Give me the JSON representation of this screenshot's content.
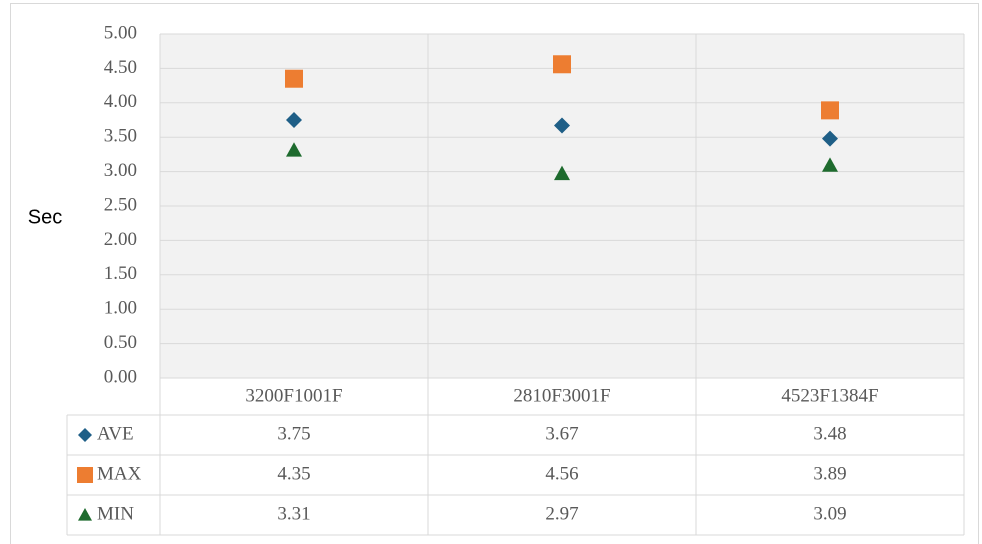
{
  "chart_data": {
    "type": "line",
    "lines": false,
    "y_label": "Sec",
    "categories": [
      "3200F1001F",
      "2810F3001F",
      "4523F1384F"
    ],
    "series": [
      {
        "name": "AVE",
        "color": "#1f5f87",
        "marker": "diamond",
        "values": [
          3.75,
          3.67,
          3.48
        ]
      },
      {
        "name": "MAX",
        "color": "#ed7d31",
        "marker": "square",
        "values": [
          4.35,
          4.56,
          3.89
        ]
      },
      {
        "name": "MIN",
        "color": "#1e6b2e",
        "marker": "triangle",
        "values": [
          3.31,
          2.97,
          3.09
        ]
      }
    ],
    "ylim": [
      0,
      5
    ],
    "yticks": [
      {
        "value": 0,
        "label": "0.00"
      },
      {
        "value": 0.5,
        "label": "0.50"
      },
      {
        "value": 1,
        "label": "1.00"
      },
      {
        "value": 1.5,
        "label": "1.50"
      },
      {
        "value": 2,
        "label": "2.00"
      },
      {
        "value": 2.5,
        "label": "2.50"
      },
      {
        "value": 3,
        "label": "3.00"
      },
      {
        "value": 3.5,
        "label": "3.50"
      },
      {
        "value": 4,
        "label": "4.00"
      },
      {
        "value": 4.5,
        "label": "4.50"
      },
      {
        "value": 5,
        "label": "5.00"
      }
    ],
    "grid": true,
    "data_table": true
  }
}
